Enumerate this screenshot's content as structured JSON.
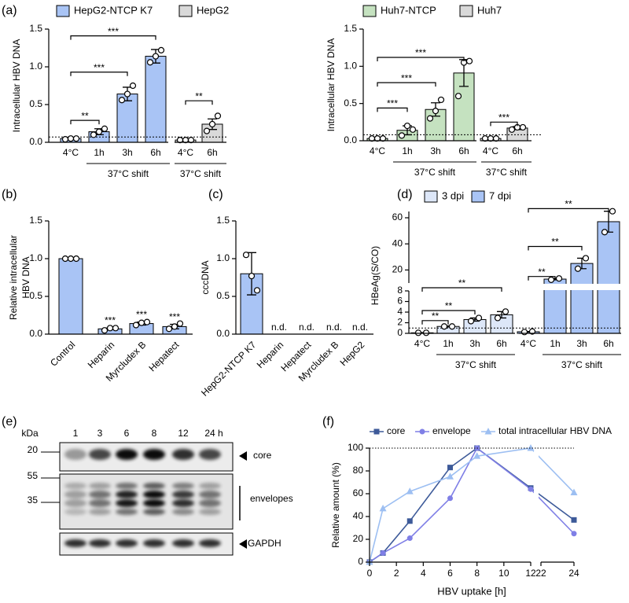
{
  "chart_data": [
    {
      "type": "bar",
      "panel": "(a)",
      "ylabel": "Intracellular HBV DNA",
      "categories": [
        "4°C",
        "1h",
        "3h",
        "6h",
        "4°C",
        "6h"
      ],
      "groups": [
        "37°C shift",
        "37°C shift"
      ],
      "series": [
        {
          "name": "HepG2-NTCP K7",
          "color": "#a9c4f5",
          "values": [
            0.05,
            0.14,
            0.64,
            1.14,
            null,
            null
          ],
          "errors": [
            0.01,
            0.04,
            0.09,
            0.09,
            null,
            null
          ],
          "points": [
            [
              0.04,
              0.05,
              0.05
            ],
            [
              0.1,
              0.14,
              0.18
            ],
            [
              0.56,
              0.64,
              0.75
            ],
            [
              1.06,
              1.14,
              1.22
            ],
            null,
            null
          ]
        },
        {
          "name": "HepG2",
          "color": "#d9d9d9",
          "values": [
            null,
            null,
            null,
            null,
            0.03,
            0.24
          ],
          "errors": [
            null,
            null,
            null,
            null,
            0.01,
            0.07
          ],
          "points": [
            null,
            null,
            null,
            null,
            [
              0.03,
              0.03,
              0.03
            ],
            [
              0.15,
              0.24,
              0.35
            ]
          ]
        }
      ],
      "ylim": [
        0,
        1.5
      ],
      "yticks": [
        {
          "value": 0,
          "label": "0.0"
        },
        0.5,
        {
          "value": 1,
          "label": "1.0"
        },
        1.5
      ],
      "reference_line": 0.07,
      "significance": [
        "**",
        "***",
        "***",
        "**"
      ]
    },
    {
      "type": "bar",
      "ylabel": "Intracellular HBV DNA",
      "categories": [
        "4°C",
        "1h",
        "3h",
        "6h",
        "4°C",
        "6h"
      ],
      "groups": [
        "37°C shift",
        "37°C shift"
      ],
      "series": [
        {
          "name": "Huh7-NTCP",
          "color": "#c5e2c0",
          "values": [
            0.03,
            0.14,
            0.42,
            0.91,
            null,
            null
          ],
          "errors": [
            0.01,
            0.06,
            0.09,
            0.18,
            null,
            null
          ],
          "points": [
            [
              0.03,
              0.03,
              0.03
            ],
            [
              0.07,
              0.2,
              0.15
            ],
            [
              0.3,
              0.4,
              0.55
            ],
            [
              0.6,
              1.05,
              1.07
            ],
            null,
            null
          ]
        },
        {
          "name": "Huh7",
          "color": "#d9d9d9",
          "values": [
            null,
            null,
            null,
            null,
            0.03,
            0.17
          ],
          "errors": [
            null,
            null,
            null,
            null,
            0.01,
            0.02
          ],
          "points": [
            null,
            null,
            null,
            null,
            [
              0.03,
              0.03,
              0.03
            ],
            [
              0.15,
              0.18,
              0.18
            ]
          ]
        }
      ],
      "ylim": [
        0,
        1.5
      ],
      "yticks": [
        {
          "value": 0,
          "label": "0.0"
        },
        0.5,
        {
          "value": 1,
          "label": "1.0"
        },
        1.5
      ],
      "reference_line": 0.08,
      "significance": [
        "***",
        "***",
        "***",
        "***"
      ]
    },
    {
      "type": "bar",
      "panel": "(b)",
      "ylabel": [
        "Relative intracellular",
        "HBV DNA"
      ],
      "categories": [
        "Control",
        "Heparin",
        "Myrcludex B",
        "Hepatect"
      ],
      "color": "#a9c4f5",
      "values": [
        1.0,
        0.07,
        0.14,
        0.1
      ],
      "errors": [
        0.0,
        0.01,
        0.02,
        0.03
      ],
      "points": [
        [
          1,
          1,
          1
        ],
        [
          0.05,
          0.08,
          0.08
        ],
        [
          0.12,
          0.15,
          0.16
        ],
        [
          0.07,
          0.1,
          0.14
        ]
      ],
      "ylim": [
        0,
        1.5
      ],
      "yticks": [
        {
          "value": 0,
          "label": "0.0"
        },
        0.5,
        {
          "value": 1,
          "label": "1.0"
        },
        1.5
      ],
      "significance": [
        "***",
        "***",
        "***"
      ]
    },
    {
      "type": "bar",
      "panel": "(c)",
      "ylabel": "cccDNA",
      "categories": [
        "HepG2-NTCP K7",
        "Heparin",
        "Hepatect",
        "Myrcludex B",
        "HepG2"
      ],
      "color": "#a9c4f5",
      "values": [
        0.8,
        null,
        null,
        null,
        null
      ],
      "value_labels": [
        null,
        "n.d.",
        "n.d.",
        "n.d.",
        "n.d."
      ],
      "errors": [
        0.28,
        null,
        null,
        null,
        null
      ],
      "points": [
        [
          1.05,
          0.77,
          0.58
        ],
        null,
        null,
        null,
        null
      ],
      "ylim": [
        0,
        1.5
      ],
      "yticks": [
        {
          "value": 0,
          "label": "0.0"
        },
        0.5,
        {
          "value": 1,
          "label": "1.0"
        },
        1.5
      ]
    },
    {
      "type": "bar",
      "panel": "(d)",
      "ylabel": "HBeAg(S/CO)",
      "categories": [
        "4°C",
        "1h",
        "3h",
        "6h",
        "4°C",
        "1h",
        "3h",
        "6h"
      ],
      "groups": [
        "37°C shift",
        "37°C shift"
      ],
      "series": [
        {
          "name": "3 dpi",
          "color": "#dde7f8",
          "values": [
            0.1,
            1.3,
            2.6,
            3.5,
            null,
            null,
            null,
            null
          ],
          "errors": [
            0.05,
            0.1,
            0.3,
            0.6,
            null,
            null,
            null,
            null
          ],
          "points": [
            [
              0.1,
              0.1
            ],
            [
              1.3,
              1.3
            ],
            [
              2.3,
              2.9
            ],
            [
              2.9,
              4.1
            ],
            null,
            null,
            null,
            null
          ]
        },
        {
          "name": "7 dpi",
          "color": "#a9c4f5",
          "values": [
            null,
            null,
            null,
            null,
            0.3,
            13,
            25,
            57
          ],
          "errors": [
            null,
            null,
            null,
            null,
            0.05,
            0.5,
            4,
            8
          ],
          "points": [
            null,
            null,
            null,
            null,
            [
              0.25,
              0.35
            ],
            [
              12.5,
              13.5
            ],
            [
              21,
              29
            ],
            [
              49,
              65
            ]
          ]
        }
      ],
      "ylim": [
        0,
        60
      ],
      "ybreak": [
        8,
        10
      ],
      "yticks": [
        0,
        2,
        4,
        6,
        8,
        20,
        40,
        60
      ],
      "reference_line": 1,
      "significance": [
        "**",
        "**",
        "**",
        "**",
        "**",
        "**"
      ]
    },
    {
      "type": "line",
      "panel": "(f)",
      "xlabel": "HBV uptake [h]",
      "ylabel": "Relative amount (%)",
      "x": [
        0,
        1,
        3,
        6,
        8,
        12,
        24
      ],
      "series": [
        {
          "name": "core",
          "color": "#3d5a99",
          "marker": "square",
          "values": [
            0,
            8,
            36,
            83,
            100,
            65,
            37
          ]
        },
        {
          "name": "envelope",
          "color": "#7f7fe6",
          "marker": "circle",
          "values": [
            0,
            8,
            21,
            56,
            100,
            64,
            25
          ]
        },
        {
          "name": "total intracellular HBV DNA",
          "color": "#9dbff2",
          "marker": "triangle",
          "values": [
            0,
            47,
            62,
            75,
            93,
            100,
            61
          ]
        }
      ],
      "xlim": [
        0,
        24
      ],
      "xbreak": [
        12,
        22
      ],
      "xticks": [
        0,
        2,
        4,
        6,
        8,
        10,
        12,
        22,
        24
      ],
      "ylim": [
        0,
        100
      ],
      "yticks": [
        0,
        20,
        40,
        60,
        80,
        100
      ],
      "reference_line": 100
    }
  ],
  "blot": {
    "panel": "(e)",
    "unit": "kDa",
    "lanes": [
      "1",
      "3",
      "6",
      "8",
      "12",
      "24 h"
    ],
    "markers": [
      20,
      55,
      35
    ],
    "bands": [
      "core",
      "envelopes",
      "GAPDH"
    ]
  }
}
